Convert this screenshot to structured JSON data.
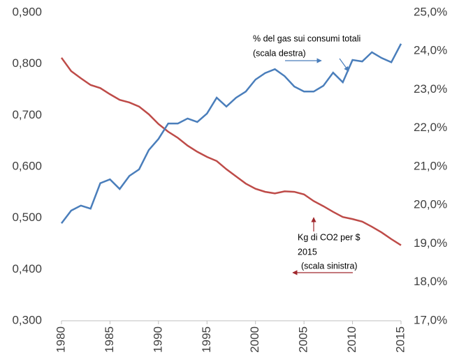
{
  "chart_data": {
    "type": "line",
    "x": [
      1980,
      1981,
      1982,
      1983,
      1984,
      1985,
      1986,
      1987,
      1988,
      1989,
      1990,
      1991,
      1992,
      1993,
      1994,
      1995,
      1996,
      1997,
      1998,
      1999,
      2000,
      2001,
      2002,
      2003,
      2004,
      2005,
      2006,
      2007,
      2008,
      2009,
      2010,
      2011,
      2012,
      2013,
      2014,
      2015
    ],
    "series": [
      {
        "color": "#be4b48",
        "values": [
          0.812,
          0.786,
          0.772,
          0.759,
          0.753,
          0.741,
          0.73,
          0.725,
          0.717,
          0.702,
          0.683,
          0.668,
          0.656,
          0.641,
          0.629,
          0.619,
          0.611,
          0.595,
          0.581,
          0.567,
          0.557,
          0.551,
          0.548,
          0.552,
          0.551,
          0.546,
          0.533,
          0.523,
          0.512,
          0.502,
          0.498,
          0.493,
          0.483,
          0.472,
          0.459,
          0.447
        ]
      },
      {
        "color": "#4a7ebb",
        "axis": "y2",
        "values": [
          19.53,
          19.86,
          19.99,
          19.91,
          20.57,
          20.67,
          20.42,
          20.76,
          20.93,
          21.43,
          21.72,
          22.12,
          22.12,
          22.25,
          22.16,
          22.38,
          22.79,
          22.56,
          22.79,
          22.95,
          23.26,
          23.43,
          23.53,
          23.35,
          23.08,
          22.95,
          22.95,
          23.1,
          23.44,
          23.19,
          23.77,
          23.73,
          23.97,
          23.82,
          23.71,
          24.19
        ]
      }
    ],
    "xlim": [
      1980,
      2015
    ],
    "xticks": [
      1980,
      1985,
      1990,
      1995,
      2000,
      2005,
      2010,
      2015
    ],
    "ylim": [
      0.3,
      0.9
    ],
    "yticks": [
      {
        "value": 0.3,
        "label": "0,300"
      },
      {
        "value": 0.4,
        "label": "0,400"
      },
      {
        "value": 0.5,
        "label": "0,500"
      },
      {
        "value": 0.6,
        "label": "0,600"
      },
      {
        "value": 0.7,
        "label": "0,700"
      },
      {
        "value": 0.8,
        "label": "0,800"
      },
      {
        "value": 0.9,
        "label": "0,900"
      }
    ],
    "y2lim": [
      17,
      25
    ],
    "y2ticks": [
      {
        "value": 17,
        "label": "17,0%"
      },
      {
        "value": 18,
        "label": "18,0%"
      },
      {
        "value": 19,
        "label": "19,0%"
      },
      {
        "value": 20,
        "label": "20,0%"
      },
      {
        "value": 21,
        "label": "21,0%"
      },
      {
        "value": 22,
        "label": "22,0%"
      },
      {
        "value": 23,
        "label": "23,0%"
      },
      {
        "value": 24,
        "label": "24,0%"
      },
      {
        "value": 25,
        "label": "25,0%"
      }
    ],
    "annotations": [
      [
        "% del gas sui consumi totali",
        "(scala destra)"
      ],
      [
        "Kg di CO2 per $",
        "2015",
        "(scala sinistra)"
      ]
    ]
  }
}
